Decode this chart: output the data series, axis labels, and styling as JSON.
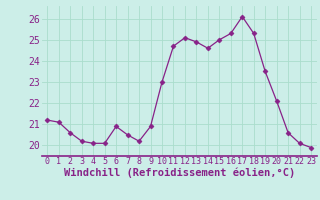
{
  "hours": [
    0,
    1,
    2,
    3,
    4,
    5,
    6,
    7,
    8,
    9,
    10,
    11,
    12,
    13,
    14,
    15,
    16,
    17,
    18,
    19,
    20,
    21,
    22,
    23
  ],
  "values": [
    21.2,
    21.1,
    20.6,
    20.2,
    20.1,
    20.1,
    20.9,
    20.5,
    20.2,
    20.9,
    23.0,
    24.7,
    25.1,
    24.9,
    24.6,
    25.0,
    25.3,
    26.1,
    25.3,
    23.5,
    22.1,
    20.6,
    20.1,
    19.9
  ],
  "line_color": "#882288",
  "marker": "D",
  "marker_size": 2.5,
  "bg_color": "#cceee8",
  "grid_color": "#aaddcc",
  "ylabel_ticks": [
    20,
    21,
    22,
    23,
    24,
    25,
    26
  ],
  "ylim": [
    19.5,
    26.6
  ],
  "xlim": [
    -0.5,
    23.5
  ],
  "xlabel": "Windchill (Refroidissement éolien,°C)",
  "xlabel_fontsize": 7.5,
  "tick_fontsize": 7,
  "spine_color": "#882288",
  "title": ""
}
